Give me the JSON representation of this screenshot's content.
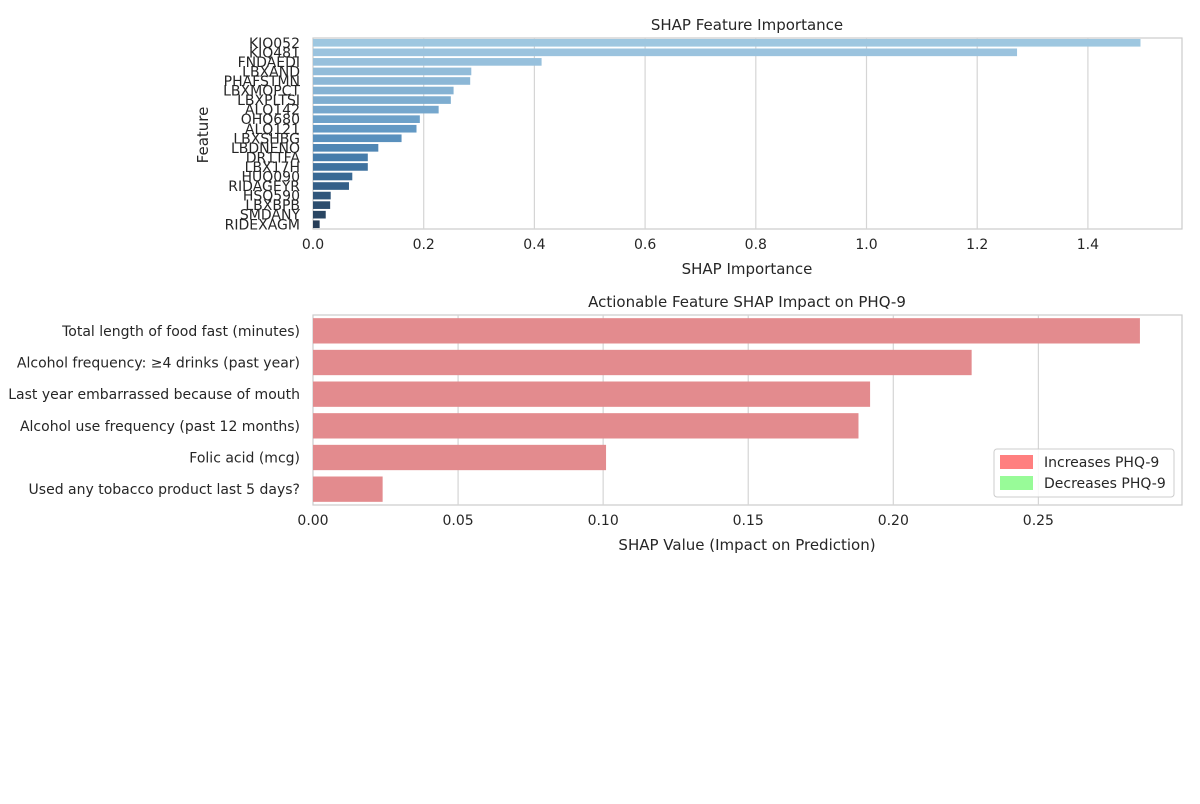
{
  "chart_data": [
    {
      "type": "bar",
      "orientation": "horizontal",
      "title": "SHAP Feature Importance",
      "xlabel": "SHAP Importance",
      "ylabel": "Feature",
      "xlim": [
        0,
        1.57
      ],
      "xticks": [
        0.0,
        0.2,
        0.4,
        0.6,
        0.8,
        1.0,
        1.2,
        1.4
      ],
      "xtick_labels": [
        "0.0",
        "0.2",
        "0.4",
        "0.6",
        "0.8",
        "1.0",
        "1.2",
        "1.4"
      ],
      "grid": "vertical",
      "categories": [
        "KIQ052",
        "KIQ481",
        "FNDAEDI",
        "LBXAND",
        "PHAFSTMN",
        "LBXMOPCT",
        "LBXPLTSI",
        "ALQ142",
        "OHQ680",
        "ALQ121",
        "LBXSHBG",
        "LBDNENO",
        "DR1TFA",
        "LBX17H",
        "HUQ090",
        "RIDAGEYR",
        "HSQ590",
        "LBXBPB",
        "SMDANY",
        "RIDEXAGM"
      ],
      "values": [
        1.495,
        1.272,
        0.413,
        0.286,
        0.284,
        0.254,
        0.249,
        0.227,
        0.193,
        0.187,
        0.16,
        0.118,
        0.099,
        0.099,
        0.071,
        0.065,
        0.032,
        0.031,
        0.023,
        0.012
      ],
      "colors": [
        "#9ec7e0",
        "#9bc3de",
        "#97c0dc",
        "#92bcd9",
        "#8cb7d6",
        "#85b2d3",
        "#7eadd0",
        "#76a7cd",
        "#6da1c9",
        "#6399c4",
        "#5990bd",
        "#4f86b4",
        "#467cab",
        "#3f729f",
        "#396994",
        "#345f88",
        "#30567b",
        "#2c4d6e",
        "#294562",
        "#263d57"
      ]
    },
    {
      "type": "bar",
      "orientation": "horizontal",
      "title": "Actionable Feature SHAP Impact on PHQ-9",
      "xlabel": "SHAP Value (Impact on Prediction)",
      "ylabel": "",
      "xlim": [
        0,
        0.2995
      ],
      "xticks": [
        0.0,
        0.05,
        0.1,
        0.15,
        0.2,
        0.25
      ],
      "xtick_labels": [
        "0.00",
        "0.05",
        "0.10",
        "0.15",
        "0.20",
        "0.25"
      ],
      "grid": "vertical",
      "categories": [
        "Total length of food fast (minutes)",
        "Alcohol frequency: ≥4 drinks (past year)",
        "Last year embarrassed because of mouth",
        "Alcohol use frequency (past 12 months)",
        "Folic acid (mcg)",
        "Used any tobacco product last 5 days?"
      ],
      "values": [
        0.285,
        0.227,
        0.192,
        0.188,
        0.101,
        0.024
      ],
      "bar_color": "#e38b8e",
      "legend": {
        "position": "right",
        "entries": [
          {
            "label": "Increases PHQ-9",
            "color": "#ff7f7f"
          },
          {
            "label": "Decreases PHQ-9",
            "color": "#98fb98"
          }
        ]
      }
    }
  ]
}
